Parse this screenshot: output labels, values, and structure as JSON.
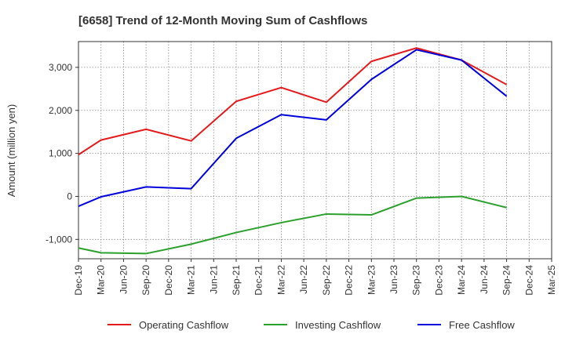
{
  "chart_data": {
    "type": "line",
    "title": "[6658]  Trend of 12-Month Moving Sum of Cashflows",
    "xlabel": "",
    "ylabel": "Amount (million yen)",
    "x_ticks": [
      "Dec-19",
      "Mar-20",
      "Jun-20",
      "Sep-20",
      "Dec-20",
      "Mar-21",
      "Jun-21",
      "Sep-21",
      "Dec-21",
      "Mar-22",
      "Jun-22",
      "Sep-22",
      "Dec-22",
      "Mar-23",
      "Jun-23",
      "Sep-23",
      "Dec-23",
      "Mar-24",
      "Jun-24",
      "Sep-24",
      "Dec-24",
      "Mar-25"
    ],
    "y_ticks": [
      -1000,
      0,
      1000,
      2000,
      3000
    ],
    "y_tick_labels": [
      "-1,000",
      "0",
      "1,000",
      "2,000",
      "3,000"
    ],
    "ylim": [
      -1450,
      3600
    ],
    "grid": true,
    "legend_position": "bottom",
    "series": [
      {
        "name": "Operating Cashflow",
        "color": "#e41a1c",
        "x": [
          "Dec-19",
          "Mar-20",
          "Sep-20",
          "Mar-21",
          "Sep-21",
          "Mar-22",
          "Sep-22",
          "Mar-23",
          "Sep-23",
          "Mar-24",
          "Sep-24"
        ],
        "values": [
          970,
          1310,
          1560,
          1290,
          2210,
          2530,
          2190,
          3140,
          3450,
          3170,
          2600
        ]
      },
      {
        "name": "Investing Cashflow",
        "color": "#2ca02c",
        "x": [
          "Dec-19",
          "Mar-20",
          "Sep-20",
          "Mar-21",
          "Sep-21",
          "Mar-22",
          "Sep-22",
          "Mar-23",
          "Sep-23",
          "Mar-24",
          "Sep-24"
        ],
        "values": [
          -1200,
          -1310,
          -1330,
          -1110,
          -840,
          -610,
          -410,
          -430,
          -40,
          0,
          -260
        ]
      },
      {
        "name": "Free Cashflow",
        "color": "#0000dd",
        "x": [
          "Dec-19",
          "Mar-20",
          "Sep-20",
          "Mar-21",
          "Sep-21",
          "Mar-22",
          "Sep-22",
          "Mar-23",
          "Sep-23",
          "Mar-24",
          "Sep-24"
        ],
        "values": [
          -230,
          -10,
          220,
          180,
          1350,
          1900,
          1780,
          2720,
          3410,
          3170,
          2330
        ]
      }
    ]
  }
}
